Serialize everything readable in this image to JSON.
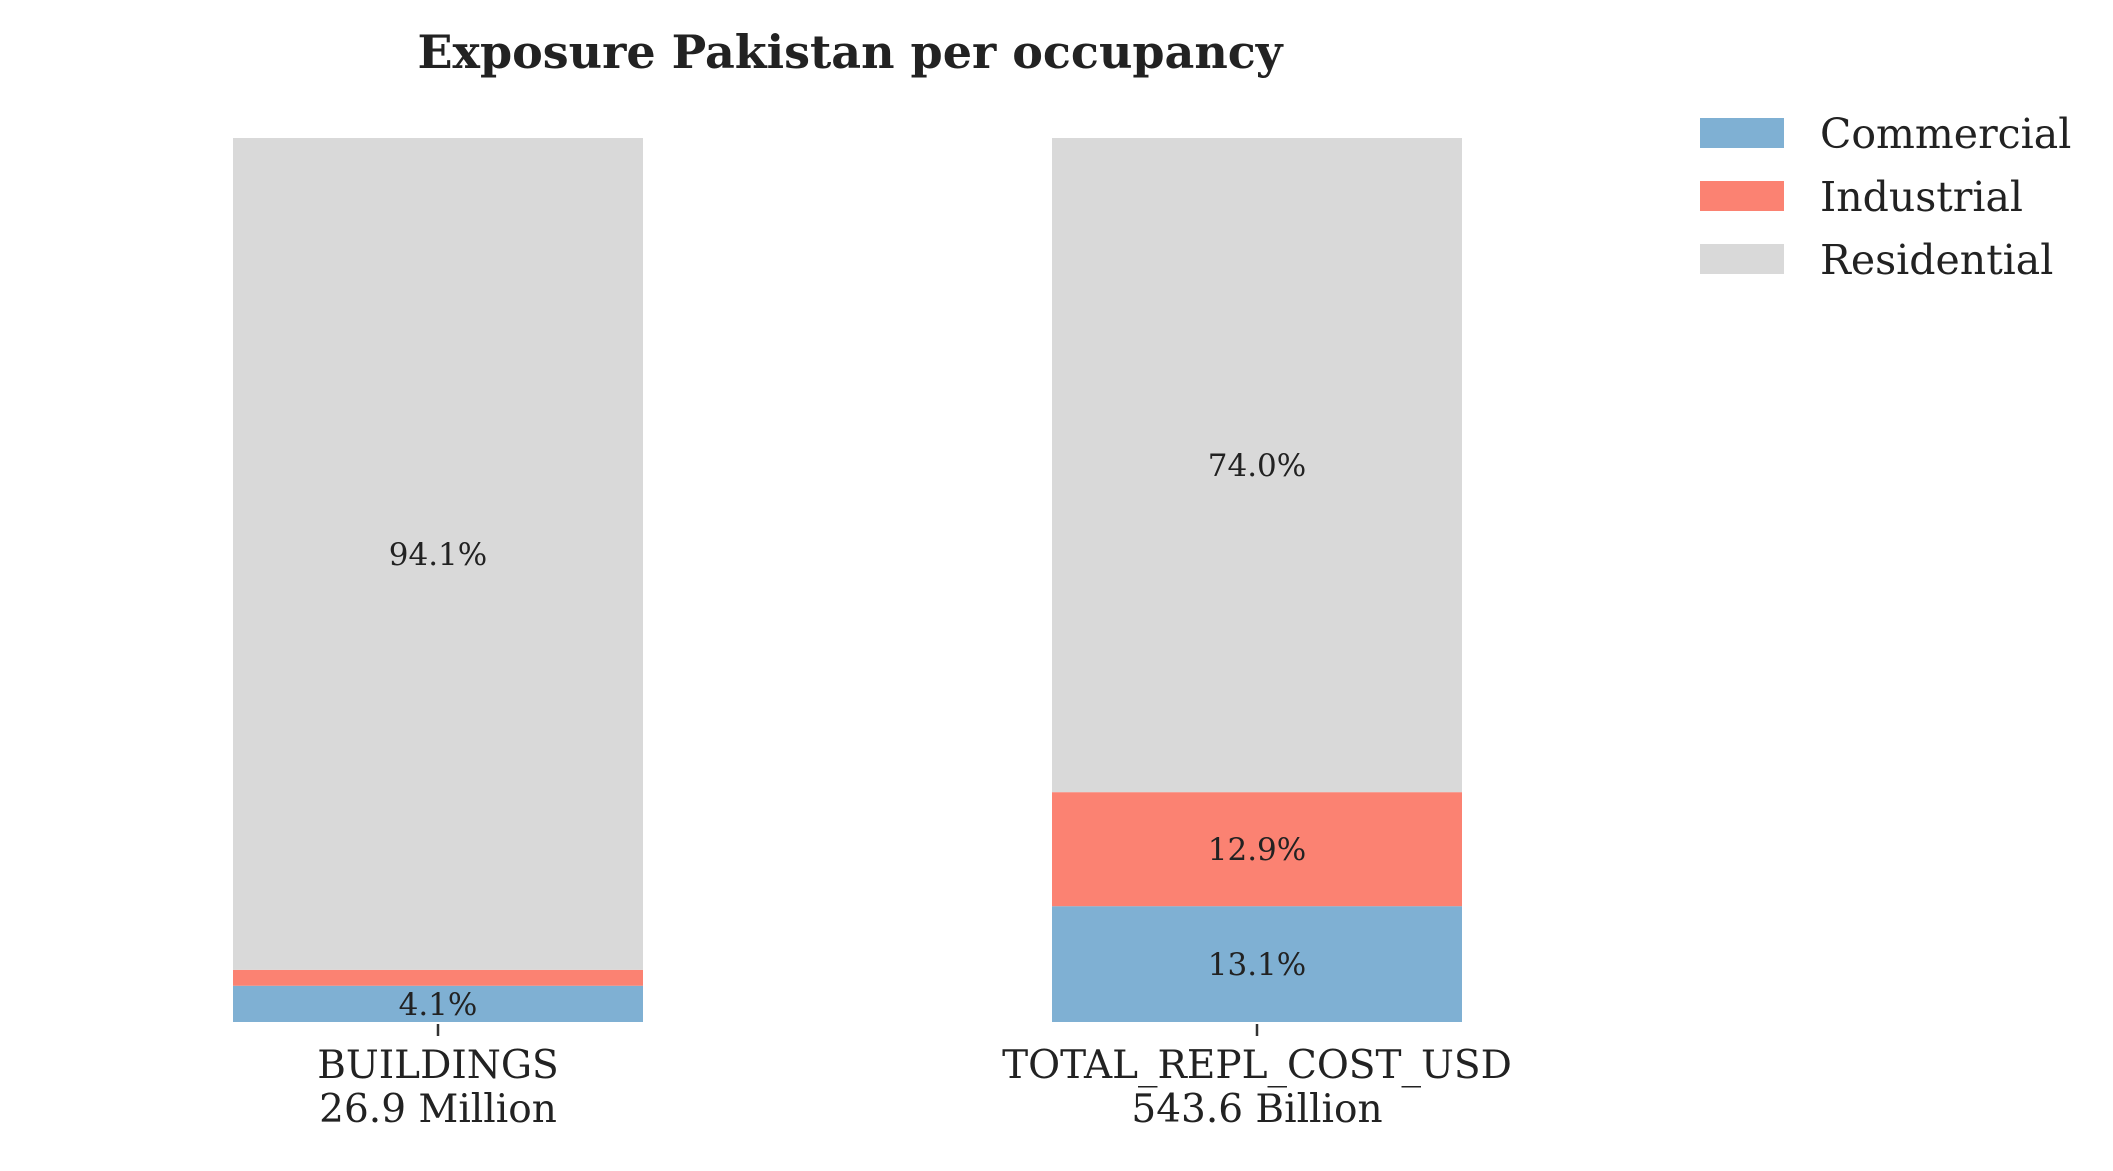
{
  "chart_data": {
    "type": "bar",
    "stacked": true,
    "normalized": true,
    "title": "Exposure Pakistan per occupancy",
    "xlabel": "",
    "ylabel": "",
    "ylim": [
      0,
      100
    ],
    "grid": false,
    "legend_position": "top-right, outside plot",
    "categories": [
      "BUILDINGS",
      "TOTAL_REPL_COST_USD"
    ],
    "category_totals": [
      "26.9 Million",
      "543.6 Billion"
    ],
    "series": [
      {
        "name": "Commercial",
        "color": "#7fb0d3",
        "values": [
          4.1,
          13.1
        ],
        "labels": [
          "4.1%",
          "13.1%"
        ]
      },
      {
        "name": "Industrial",
        "color": "#fb8272",
        "values": [
          1.8,
          12.9
        ],
        "labels": [
          "",
          "12.9%"
        ]
      },
      {
        "name": "Residential",
        "color": "#d9d9d9",
        "values": [
          94.1,
          74.0
        ],
        "labels": [
          "94.1%",
          "74.0%"
        ]
      }
    ]
  }
}
